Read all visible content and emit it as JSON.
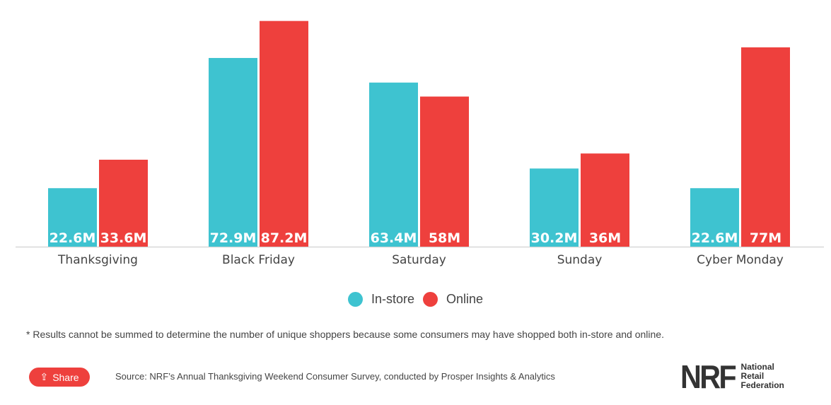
{
  "chart_data": {
    "type": "bar",
    "categories": [
      "Thanksgiving",
      "Black Friday",
      "Saturday",
      "Sunday",
      "Cyber Monday"
    ],
    "series": [
      {
        "name": "In-store",
        "values": [
          22.6,
          72.9,
          63.4,
          30.2,
          22.6
        ],
        "labels": [
          "22.6M",
          "72.9M",
          "63.4M",
          "30.2M",
          "22.6M"
        ],
        "color": "#3ec3d0"
      },
      {
        "name": "Online",
        "values": [
          33.6,
          87.2,
          58,
          36,
          77
        ],
        "labels": [
          "33.6M",
          "87.2M",
          "58M",
          "36M",
          "77M"
        ],
        "color": "#ee403d"
      }
    ],
    "unit": "M",
    "ylim": [
      0,
      95.3
    ],
    "grid": false,
    "legend_position": "bottom"
  },
  "footnote": "* Results cannot be summed to determine the number of unique shoppers because some consumers may have shopped both in-store and online.",
  "share_label": "Share",
  "source": "Source: NRF’s Annual Thanksgiving Weekend Consumer Survey, conducted by Prosper Insights & Analytics",
  "logo": {
    "mark": "NRF",
    "text": [
      "National",
      "Retail",
      "Federation"
    ]
  }
}
